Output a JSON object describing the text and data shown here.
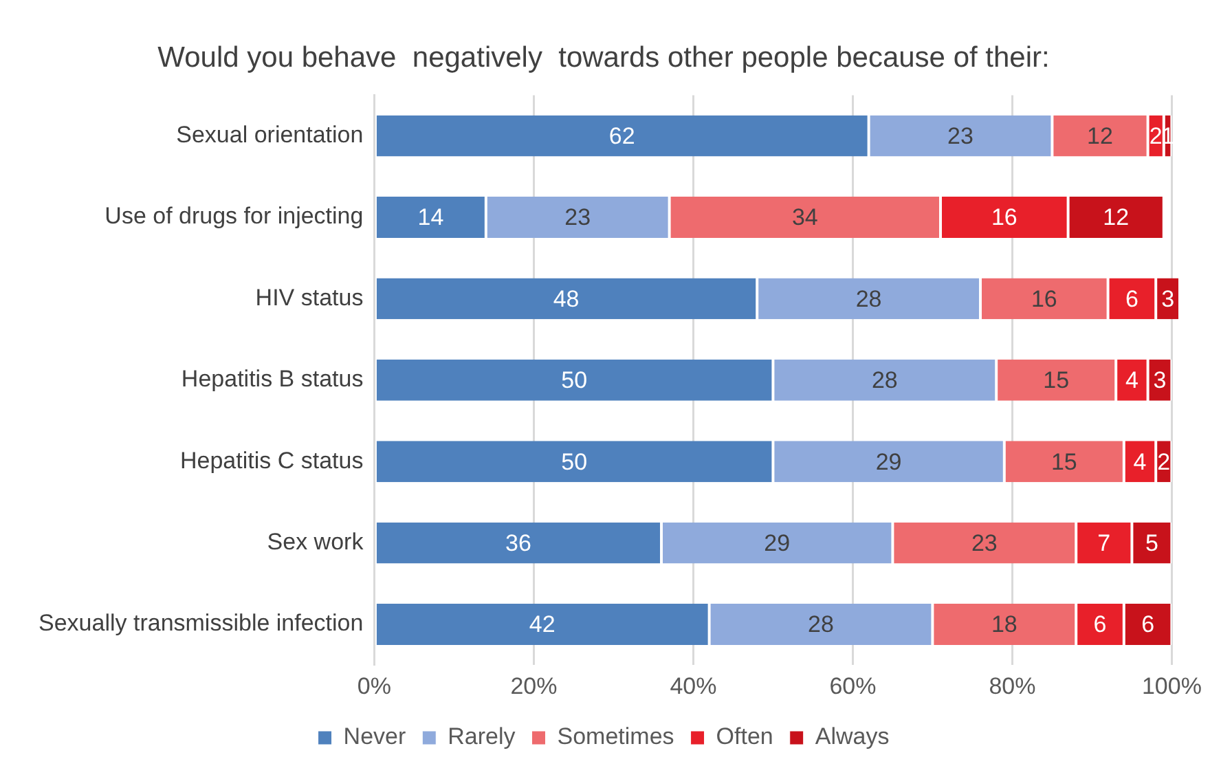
{
  "chart_data": {
    "type": "bar",
    "orientation": "horizontal",
    "stacked": true,
    "title": "Would you behave  negatively  towards other people because of their:",
    "categories": [
      "Sexual orientation",
      "Use of drugs for injecting",
      "HIV status",
      "Hepatitis B status",
      "Hepatitis C status",
      "Sex work",
      "Sexually transmissible infection"
    ],
    "series": [
      {
        "name": "Never",
        "color": "#4f81bd",
        "values": [
          62,
          14,
          48,
          50,
          50,
          36,
          42
        ]
      },
      {
        "name": "Rarely",
        "color": "#8faadc",
        "values": [
          23,
          23,
          28,
          28,
          29,
          29,
          28
        ]
      },
      {
        "name": "Sometimes",
        "color": "#ee6b6e",
        "values": [
          12,
          34,
          16,
          15,
          15,
          23,
          18
        ]
      },
      {
        "name": "Often",
        "color": "#e8202a",
        "values": [
          2,
          16,
          6,
          4,
          4,
          7,
          6
        ]
      },
      {
        "name": "Always",
        "color": "#c8121b",
        "values": [
          1,
          12,
          3,
          3,
          2,
          5,
          6
        ]
      }
    ],
    "xlim": [
      0,
      101
    ],
    "xticks": [
      {
        "value": 0,
        "label": "0%"
      },
      {
        "value": 20,
        "label": "20%"
      },
      {
        "value": 40,
        "label": "40%"
      },
      {
        "value": 60,
        "label": "60%"
      },
      {
        "value": 80,
        "label": "80%"
      },
      {
        "value": 100,
        "label": "100%"
      }
    ],
    "grid": "x",
    "legend": "bottom",
    "data_labels": true
  }
}
